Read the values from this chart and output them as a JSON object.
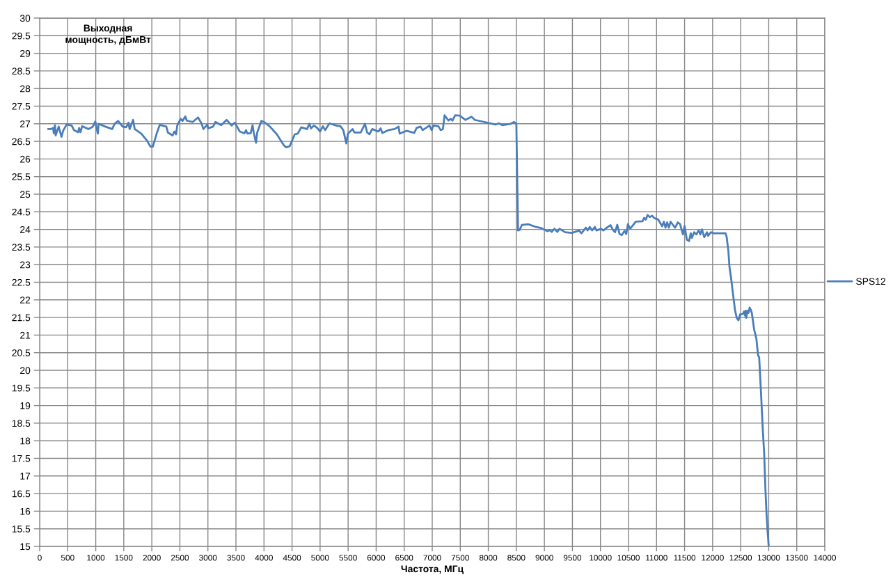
{
  "chart_data": {
    "type": "line",
    "xlabel": "Частота, МГц",
    "ylabel": "Выходная\nмощность, дБмВт",
    "series": [
      {
        "name": "SPS12",
        "color": "#4a7ebb",
        "x": [
          150,
          200,
          240,
          252,
          273,
          285,
          339,
          389,
          418,
          480,
          571,
          612,
          686,
          703,
          728,
          757,
          868,
          943,
          992,
          1013,
          1038,
          1050,
          1170,
          1294,
          1336,
          1398,
          1480,
          1542,
          1584,
          1604,
          1666,
          1695,
          1811,
          1915,
          1976,
          2018,
          2092,
          2142,
          2258,
          2287,
          2370,
          2403,
          2432,
          2453,
          2514,
          2547,
          2597,
          2622,
          2729,
          2824,
          2886,
          2919,
          2990,
          3002,
          3093,
          3134,
          3238,
          3333,
          3424,
          3478,
          3569,
          3651,
          3680,
          3705,
          3763,
          3796,
          3817,
          3858,
          3879,
          3953,
          4003,
          4106,
          4230,
          4354,
          4395,
          4457,
          4548,
          4602,
          4664,
          4768,
          4809,
          4838,
          4892,
          4950,
          5000,
          5050,
          5091,
          5166,
          5290,
          5364,
          5414,
          5468,
          5497,
          5580,
          5613,
          5725,
          5800,
          5840,
          5880,
          5930,
          6040,
          6080,
          6110,
          6220,
          6330,
          6400,
          6420,
          6540,
          6680,
          6720,
          6790,
          6830,
          6950,
          6990,
          7020,
          7110,
          7150,
          7190,
          7220,
          7290,
          7330,
          7360,
          7410,
          7490,
          7590,
          7700,
          7760,
          7900,
          8070,
          8130,
          8190,
          8250,
          8400,
          8460,
          8500,
          8530,
          8560,
          8600,
          8710,
          8830,
          8940,
          9050,
          9100,
          9130,
          9180,
          9230,
          9270,
          9370,
          9490,
          9620,
          9660,
          9740,
          9770,
          9810,
          9850,
          9900,
          9930,
          10010,
          10050,
          10130,
          10180,
          10220,
          10260,
          10300,
          10340,
          10380,
          10430,
          10460,
          10490,
          10530,
          10630,
          10750,
          10780,
          10810,
          10840,
          10880,
          10920,
          10960,
          11030,
          11100,
          11130,
          11160,
          11190,
          11220,
          11250,
          11330,
          11380,
          11420,
          11470,
          11500,
          11540,
          11580,
          11610,
          11630,
          11670,
          11710,
          11750,
          11780,
          11810,
          11850,
          11900,
          11920,
          11970,
          12020,
          12230,
          12250,
          12280,
          12300,
          12330,
          12360,
          12400,
          12430,
          12460,
          12490,
          12540,
          12560,
          12580,
          12590,
          12600,
          12620,
          12640,
          12660,
          12680,
          12700,
          12740,
          12780,
          12810,
          12830,
          12860,
          12890,
          12920,
          12940,
          12960,
          12980,
          13000
        ],
        "values": [
          26.85,
          26.85,
          26.88,
          26.73,
          26.96,
          26.67,
          26.92,
          26.63,
          26.8,
          26.98,
          26.95,
          26.82,
          26.76,
          26.88,
          26.76,
          26.93,
          26.85,
          26.91,
          27.06,
          26.88,
          26.72,
          27.0,
          26.92,
          26.85,
          27.0,
          27.08,
          26.92,
          26.9,
          27.03,
          26.85,
          27.11,
          26.85,
          26.72,
          26.52,
          26.35,
          26.35,
          26.75,
          26.97,
          26.92,
          26.75,
          26.67,
          26.78,
          26.7,
          26.95,
          27.14,
          27.08,
          27.21,
          27.09,
          27.05,
          27.18,
          27.01,
          26.85,
          26.98,
          26.87,
          26.92,
          27.05,
          26.96,
          27.11,
          26.95,
          27.03,
          26.78,
          26.73,
          26.82,
          26.72,
          26.73,
          26.96,
          26.75,
          26.46,
          26.75,
          27.08,
          27.05,
          26.92,
          26.7,
          26.39,
          26.33,
          26.36,
          26.7,
          26.72,
          26.9,
          26.85,
          27.0,
          26.87,
          26.95,
          26.88,
          26.78,
          26.93,
          26.82,
          27.01,
          26.95,
          26.93,
          26.82,
          26.44,
          26.72,
          26.85,
          26.75,
          26.75,
          27.0,
          26.75,
          26.7,
          26.85,
          26.78,
          26.87,
          26.74,
          26.82,
          26.85,
          26.92,
          26.72,
          26.8,
          26.74,
          26.88,
          26.92,
          26.82,
          26.95,
          26.82,
          26.95,
          26.93,
          26.82,
          26.85,
          27.24,
          27.09,
          27.14,
          27.09,
          27.24,
          27.23,
          27.11,
          27.2,
          27.11,
          27.06,
          27.0,
          26.98,
          27.01,
          26.96,
          27.0,
          27.05,
          27.0,
          23.97,
          23.99,
          24.13,
          24.15,
          24.08,
          24.04,
          23.95,
          23.98,
          23.93,
          24.02,
          23.93,
          24.02,
          23.92,
          23.9,
          23.97,
          23.89,
          24.05,
          23.97,
          24.07,
          23.97,
          24.07,
          23.97,
          24.02,
          23.97,
          24.07,
          24.12,
          23.99,
          23.92,
          24.13,
          23.87,
          23.84,
          23.96,
          23.87,
          24.15,
          24.02,
          24.22,
          24.23,
          24.33,
          24.28,
          24.41,
          24.35,
          24.39,
          24.32,
          24.28,
          24.09,
          24.22,
          24.05,
          24.2,
          24.05,
          24.22,
          24.05,
          24.2,
          24.15,
          23.86,
          24.1,
          23.71,
          23.67,
          23.89,
          23.76,
          23.92,
          23.86,
          23.97,
          23.86,
          24.0,
          23.78,
          23.92,
          23.82,
          23.92,
          23.89,
          23.89,
          23.79,
          23.4,
          22.94,
          22.61,
          22.21,
          21.7,
          21.49,
          21.42,
          21.59,
          21.6,
          21.67,
          21.55,
          21.69,
          21.49,
          21.69,
          21.63,
          21.78,
          21.72,
          21.62,
          21.16,
          20.9,
          20.43,
          20.37,
          19.45,
          18.46,
          17.6,
          16.68,
          15.96,
          15.43,
          15
        ]
      }
    ],
    "xlim": [
      0,
      14000
    ],
    "ylim": [
      15,
      30
    ],
    "xticks": [
      0,
      500,
      1000,
      1500,
      2000,
      2500,
      3000,
      3500,
      4000,
      4500,
      5000,
      5500,
      6000,
      6500,
      7000,
      7500,
      8000,
      8500,
      9000,
      9500,
      10000,
      10500,
      11000,
      11500,
      12000,
      12500,
      13000,
      13500,
      14000
    ],
    "yticks": [
      15,
      15.5,
      16,
      16.5,
      17,
      17.5,
      18,
      18.5,
      19,
      19.5,
      20,
      20.5,
      21,
      21.5,
      22,
      22.5,
      23,
      23.5,
      24,
      24.5,
      25,
      25.5,
      26,
      26.5,
      27,
      27.5,
      28,
      28.5,
      29,
      29.5,
      30
    ],
    "grid": true,
    "legend": "right"
  }
}
